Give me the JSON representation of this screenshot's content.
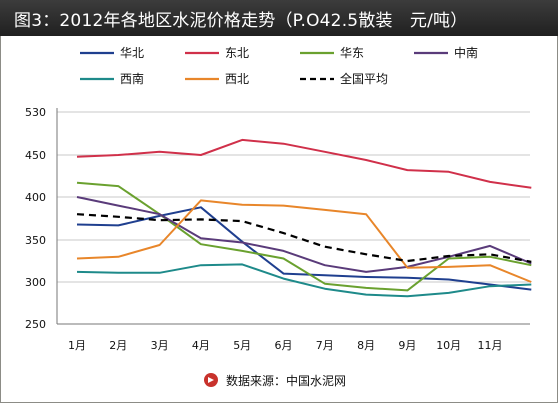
{
  "chart_data": {
    "type": "line",
    "title": "图3：2012年各地区水泥价格走势（P.O42.5散装　元/吨）",
    "categories": [
      "1月",
      "2月",
      "3月",
      "4月",
      "5月",
      "6月",
      "7月",
      "8月",
      "9月",
      "10月",
      "11月",
      ""
    ],
    "yticks": [
      250,
      300,
      350,
      400,
      450,
      530
    ],
    "series": [
      {
        "name": "华北",
        "color": "#1f3f8f",
        "dashed": false,
        "values": [
          368,
          367,
          378,
          388,
          348,
          310,
          308,
          306,
          305,
          303,
          297,
          291
        ]
      },
      {
        "name": "东北",
        "color": "#d0304a",
        "dashed": false,
        "values": [
          448,
          450,
          456,
          450,
          478,
          471,
          456,
          444,
          432,
          430,
          418,
          411
        ]
      },
      {
        "name": "华东",
        "color": "#6aa12f",
        "dashed": false,
        "values": [
          417,
          413,
          380,
          345,
          337,
          328,
          298,
          293,
          290,
          328,
          330,
          320
        ]
      },
      {
        "name": "中南",
        "color": "#5a3b7a",
        "dashed": false,
        "values": [
          400,
          390,
          380,
          352,
          347,
          337,
          320,
          312,
          318,
          330,
          343,
          322
        ]
      },
      {
        "name": "西南",
        "color": "#1e8a8a",
        "dashed": false,
        "values": [
          312,
          311,
          311,
          320,
          321,
          304,
          292,
          285,
          283,
          287,
          295,
          297
        ]
      },
      {
        "name": "西北",
        "color": "#e8862a",
        "dashed": false,
        "values": [
          328,
          330,
          344,
          396,
          391,
          390,
          385,
          380,
          317,
          318,
          320,
          300
        ]
      },
      {
        "name": "全国平均",
        "color": "#000000",
        "dashed": true,
        "values": [
          380,
          377,
          373,
          374,
          372,
          358,
          342,
          333,
          325,
          331,
          333,
          324
        ]
      }
    ],
    "legend": "top"
  },
  "source": {
    "text": "数据来源：中国水泥网"
  }
}
